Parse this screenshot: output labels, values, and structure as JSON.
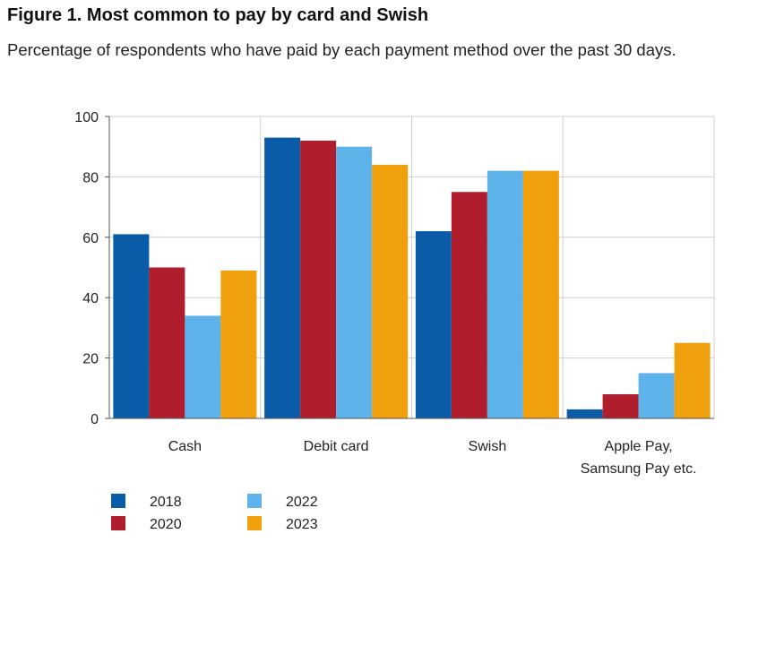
{
  "header": {
    "title": "Figure 1. Most common to pay by card and Swish",
    "subtitle": "Percentage of respondents who have paid by each payment method over the past 30 days."
  },
  "chart_data": {
    "type": "bar",
    "title": "Figure 1. Most common to pay by card and Swish",
    "subtitle": "Percentage of respondents who have paid by each payment method over the past 30 days.",
    "xlabel": "",
    "ylabel": "",
    "ylim": [
      0,
      100
    ],
    "yticks": [
      0,
      20,
      40,
      60,
      80,
      100
    ],
    "grid": true,
    "legend_position": "bottom-left",
    "categories": [
      [
        "Cash"
      ],
      [
        "Debit card"
      ],
      [
        "Swish"
      ],
      [
        "Apple Pay,",
        "Samsung Pay etc."
      ]
    ],
    "series": [
      {
        "name": "2018",
        "color": "#0a5ca8",
        "values": [
          61,
          93,
          62,
          3
        ]
      },
      {
        "name": "2020",
        "color": "#b01e2e",
        "values": [
          50,
          92,
          75,
          8
        ]
      },
      {
        "name": "2022",
        "color": "#5db3ea",
        "values": [
          34,
          90,
          82,
          15
        ]
      },
      {
        "name": "2023",
        "color": "#f0a00c",
        "values": [
          49,
          84,
          82,
          25
        ]
      }
    ]
  }
}
